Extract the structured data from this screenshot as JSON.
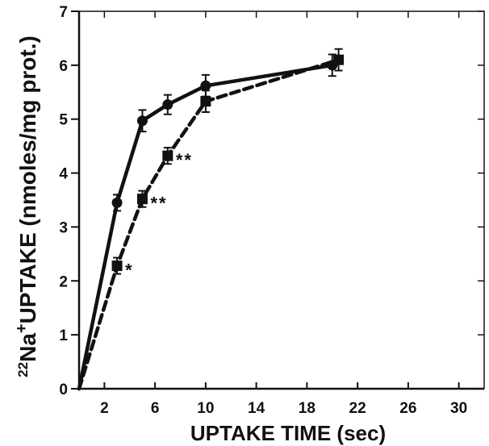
{
  "chart_data": {
    "type": "line",
    "xlabel": "UPTAKE TIME (sec)",
    "ylabel": {
      "mass_number": "22",
      "symbol": "Na",
      "charge": "+",
      "text": "UPTAKE (nmoles/mg prot.)"
    },
    "xlim": [
      0,
      32
    ],
    "ylim": [
      0,
      7
    ],
    "xticks": [
      2,
      6,
      10,
      14,
      18,
      22,
      26,
      30
    ],
    "yticks": [
      0,
      1,
      2,
      3,
      4,
      5,
      6,
      7
    ],
    "grid": false,
    "legend": "none",
    "series": [
      {
        "marker": "circle",
        "line_style": "solid",
        "color": "#111111",
        "points": [
          {
            "x": 0,
            "y": 0
          },
          {
            "x": 3,
            "y": 3.45,
            "err": 0.15
          },
          {
            "x": 5,
            "y": 4.97,
            "err": 0.2
          },
          {
            "x": 7,
            "y": 5.27,
            "err": 0.18
          },
          {
            "x": 10,
            "y": 5.62,
            "err": 0.2
          },
          {
            "x": 20,
            "y": 6.0,
            "err": 0.2
          }
        ]
      },
      {
        "marker": "square",
        "line_style": "dashed",
        "color": "#111111",
        "points": [
          {
            "x": 0,
            "y": 0
          },
          {
            "x": 3,
            "y": 2.28,
            "err": 0.15,
            "label": "*"
          },
          {
            "x": 5,
            "y": 3.52,
            "err": 0.15,
            "label": "**"
          },
          {
            "x": 7,
            "y": 4.32,
            "err": 0.15,
            "label": "**"
          },
          {
            "x": 10,
            "y": 5.33,
            "err": 0.2
          },
          {
            "x": 20.5,
            "y": 6.1,
            "err": 0.2
          }
        ]
      }
    ]
  }
}
